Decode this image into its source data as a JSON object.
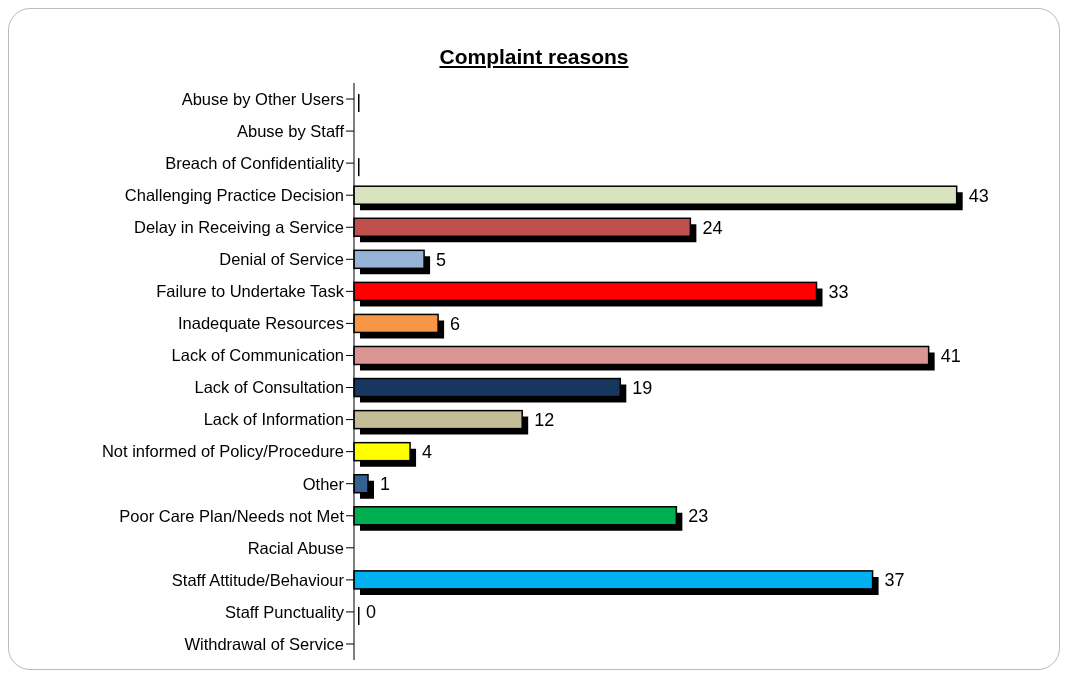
{
  "chart_data": {
    "type": "bar",
    "orientation": "horizontal",
    "title": "Complaint reasons",
    "categories": [
      "Abuse by Other Users",
      "Abuse by Staff",
      "Breach of Confidentiality",
      "Challenging Practice Decision",
      "Delay in Receiving a Service",
      "Denial of Service",
      "Failure to Undertake Task",
      "Inadequate Resources",
      "Lack of Communication",
      "Lack of Consultation",
      "Lack of Information",
      "Not informed of Policy/Procedure",
      "Other",
      "Poor Care Plan/Needs not Met",
      "Racial Abuse",
      "Staff Attitude/Behaviour",
      "Staff Punctuality",
      "Withdrawal of Service"
    ],
    "values": [
      0,
      null,
      0,
      43,
      24,
      5,
      33,
      6,
      41,
      19,
      12,
      4,
      1,
      23,
      null,
      37,
      0,
      null
    ],
    "value_labels": [
      null,
      null,
      null,
      "43",
      "24",
      "5",
      "33",
      "6",
      "41",
      "19",
      "12",
      "4",
      "1",
      "23",
      null,
      "37",
      "0",
      null
    ],
    "colors": [
      "#000000",
      null,
      "#000000",
      "#d7e4bd",
      "#c0504d",
      "#95b3d7",
      "#ff0000",
      "#f79646",
      "#d99694",
      "#17375e",
      "#c4bd97",
      "#ffff00",
      "#376092",
      "#00b050",
      null,
      "#00b0f0",
      "#000000",
      null
    ],
    "grid": false,
    "legend": false
  }
}
